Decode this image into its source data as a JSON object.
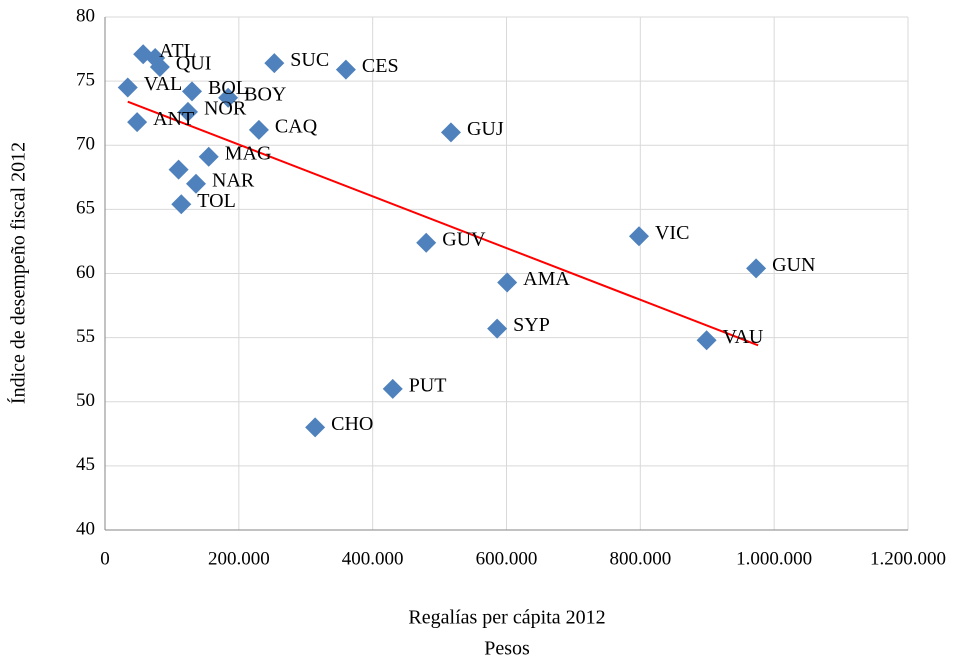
{
  "chart_data": {
    "type": "scatter",
    "x_label": "Regalías per cápita 2012",
    "x_label_unit": "Pesos",
    "y_label": "Índice de desempeño fiscal 2012",
    "labels": [
      "ATL",
      null,
      "QUI",
      "VAL",
      "BOL",
      "BOY",
      "NOR",
      "ANT",
      "CAQ",
      "SUC",
      "CES",
      "GUJ",
      "MAG",
      null,
      "NAR",
      "TOL",
      "GUV",
      "VIC",
      "GUN",
      "AMA",
      "SYP",
      "VAU",
      "PUT",
      "CHO"
    ],
    "x": [
      57000,
      75000,
      82000,
      34000,
      130000,
      184000,
      124000,
      48000,
      230000,
      253000,
      360000,
      517000,
      155000,
      110000,
      136000,
      114000,
      480000,
      798000,
      973000,
      601000,
      586000,
      899000,
      430000,
      314000
    ],
    "values": [
      77.1,
      76.8,
      76.1,
      74.5,
      74.2,
      73.7,
      72.6,
      71.8,
      71.2,
      76.4,
      75.9,
      71.0,
      69.1,
      68.1,
      67.0,
      65.4,
      62.4,
      62.9,
      60.4,
      59.3,
      55.7,
      54.8,
      51.0,
      48.0
    ],
    "color": "#4f81bd",
    "trendline": {
      "x": [
        34000,
        976000
      ],
      "y": [
        73.4,
        54.4
      ],
      "color": "#ff0000"
    },
    "xlim": [
      0,
      1200000
    ],
    "ylim": [
      40,
      80
    ],
    "xticks": [
      0,
      {
        "value": 200000,
        "label": "200.000"
      },
      {
        "value": 400000,
        "label": "400.000"
      },
      {
        "value": 600000,
        "label": "600.000"
      },
      {
        "value": 800000,
        "label": "800.000"
      },
      {
        "value": 1000000,
        "label": "1.000.000"
      },
      {
        "value": 1200000,
        "label": "1.200.000"
      }
    ],
    "yticks": [
      40,
      45,
      50,
      55,
      60,
      65,
      70,
      75,
      80
    ],
    "grid": true
  }
}
